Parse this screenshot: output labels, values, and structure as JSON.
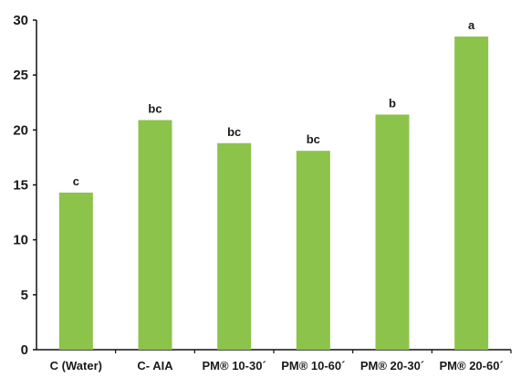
{
  "chart_data": {
    "type": "bar",
    "categories": [
      "C (Water)",
      "C- AIA",
      "PM® 10-30´",
      "PM® 10-60´",
      "PM® 20-30´",
      "PM® 20-60´"
    ],
    "values": [
      14.3,
      20.9,
      18.8,
      18.1,
      21.4,
      28.5
    ],
    "labels": [
      "c",
      "bc",
      "bc",
      "bc",
      "b",
      "a"
    ],
    "title": "",
    "xlabel": "",
    "ylabel": "",
    "ylim": [
      0,
      30
    ],
    "yticks": [
      "0",
      "5",
      "10",
      "15",
      "20",
      "25",
      "30"
    ],
    "grid": false,
    "legend": "none",
    "bar_color": "#8cc34a",
    "axis_color": "#111111"
  }
}
